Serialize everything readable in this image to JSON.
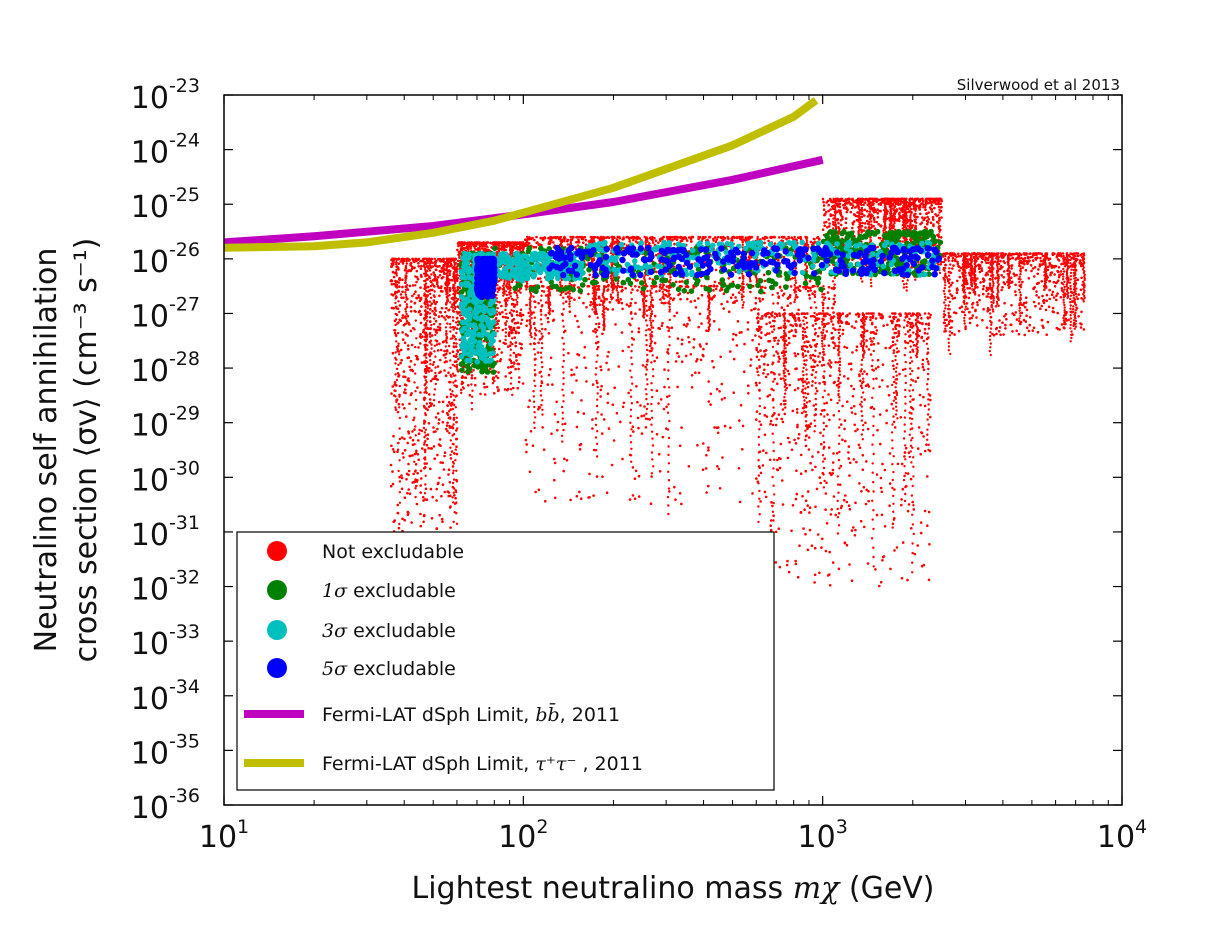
{
  "chart_data": {
    "type": "scatter",
    "xlabel": "Lightest neutralino mass m_χ (GeV)",
    "xlabel_text": "Lightest neutralino mass ",
    "xlabel_symbol": "mχ",
    "xlabel_unit": " (GeV)",
    "ylabel_line1": "Neutralino self annihilation",
    "ylabel_line2": "cross section ⟨σv⟩ (cm⁻³ s⁻¹)",
    "xscale": "log",
    "yscale": "log",
    "xlim": [
      10,
      10000
    ],
    "ylim": [
      1e-36,
      1e-23
    ],
    "x_ticks": [
      {
        "value": 10,
        "base": "10",
        "exp": "1"
      },
      {
        "value": 100,
        "base": "10",
        "exp": "2"
      },
      {
        "value": 1000,
        "base": "10",
        "exp": "3"
      },
      {
        "value": 10000,
        "base": "10",
        "exp": "4"
      }
    ],
    "y_ticks": [
      {
        "value": 1e-23,
        "base": "10",
        "exp": "-23"
      },
      {
        "value": 1e-24,
        "base": "10",
        "exp": "-24"
      },
      {
        "value": 1e-25,
        "base": "10",
        "exp": "-25"
      },
      {
        "value": 1e-26,
        "base": "10",
        "exp": "-26"
      },
      {
        "value": 1e-27,
        "base": "10",
        "exp": "-27"
      },
      {
        "value": 1e-28,
        "base": "10",
        "exp": "-28"
      },
      {
        "value": 1e-29,
        "base": "10",
        "exp": "-29"
      },
      {
        "value": 1e-30,
        "base": "10",
        "exp": "-30"
      },
      {
        "value": 1e-31,
        "base": "10",
        "exp": "-31"
      },
      {
        "value": 1e-32,
        "base": "10",
        "exp": "-32"
      },
      {
        "value": 1e-33,
        "base": "10",
        "exp": "-33"
      },
      {
        "value": 1e-34,
        "base": "10",
        "exp": "-34"
      },
      {
        "value": 1e-35,
        "base": "10",
        "exp": "-35"
      },
      {
        "value": 1e-36,
        "base": "10",
        "exp": "-36"
      }
    ],
    "annotation": "Silverwood et al 2013",
    "legend_position": "lower-left",
    "series": [
      {
        "name": "Not excludable",
        "kind": "points",
        "color": "#ff0000",
        "regions": [
          {
            "x": [
              36,
              60
            ],
            "logy": [
              -31.0,
              -26.0
            ]
          },
          {
            "x": [
              60,
              100
            ],
            "logy": [
              -28.5,
              -25.7
            ]
          },
          {
            "x": [
              100,
              1000
            ],
            "logy": [
              -26.5,
              -25.6
            ]
          },
          {
            "x": [
              1000,
              2500
            ],
            "logy": [
              -26.2,
              -24.9
            ]
          },
          {
            "x": [
              2500,
              7500
            ],
            "logy": [
              -27.4,
              -25.9
            ]
          },
          {
            "x": [
              100,
              1100
            ],
            "logy": [
              -30.5,
              -26.5
            ]
          },
          {
            "x": [
              600,
              2300
            ],
            "logy": [
              -32.0,
              -27.0
            ]
          }
        ]
      },
      {
        "name": "1σ excludable",
        "symbol": "1σ",
        "kind": "points",
        "color": "#008000",
        "regions": [
          {
            "x": [
              62,
              80
            ],
            "logy": [
              -28.1,
              -25.9
            ]
          },
          {
            "x": [
              80,
              1000
            ],
            "logy": [
              -26.6,
              -25.8
            ]
          },
          {
            "x": [
              1000,
              2500
            ],
            "logy": [
              -26.3,
              -25.5
            ]
          }
        ]
      },
      {
        "name": "3σ excludable",
        "symbol": "3σ",
        "kind": "points",
        "color": "#00bfbf",
        "regions": [
          {
            "x": [
              62,
              80
            ],
            "logy": [
              -27.9,
              -25.9
            ]
          },
          {
            "x": [
              80,
              160
            ],
            "logy": [
              -26.4,
              -25.9
            ]
          },
          {
            "x": [
              160,
              2500
            ],
            "logy": [
              -26.3,
              -25.7
            ]
          }
        ]
      },
      {
        "name": "5σ excludable",
        "symbol": "5σ",
        "kind": "points",
        "color": "#0000ff",
        "regions": [
          {
            "x": [
              70,
              80
            ],
            "logy": [
              -26.7,
              -26.0
            ]
          },
          {
            "x": [
              120,
              2500
            ],
            "logy": [
              -26.3,
              -25.8
            ]
          }
        ]
      },
      {
        "name": "Fermi-LAT dSph Limit, bb̄, 2011",
        "label_prefix": "Fermi-LAT dSph Limit, ",
        "label_symbol": "bb̄",
        "label_suffix": ", 2011",
        "kind": "line",
        "color": "#bf00bf",
        "x": [
          10,
          20,
          50,
          100,
          200,
          500,
          1000
        ],
        "y": [
          2e-26,
          2.6e-26,
          4e-26,
          6.5e-26,
          1.1e-25,
          2.8e-25,
          6.5e-25
        ]
      },
      {
        "name": "Fermi-LAT dSph Limit, τ⁺τ⁻, 2011",
        "label_prefix": "Fermi-LAT dSph Limit, ",
        "label_symbol": "τ⁺τ⁻",
        "label_suffix": " , 2011",
        "kind": "line",
        "color": "#bfbf00",
        "x": [
          10,
          20,
          30,
          50,
          80,
          100,
          200,
          500,
          800,
          950
        ],
        "y": [
          1.6e-26,
          1.7e-26,
          2e-26,
          3e-26,
          5e-26,
          7e-26,
          2e-25,
          1.2e-24,
          4e-24,
          8e-24
        ]
      }
    ]
  }
}
